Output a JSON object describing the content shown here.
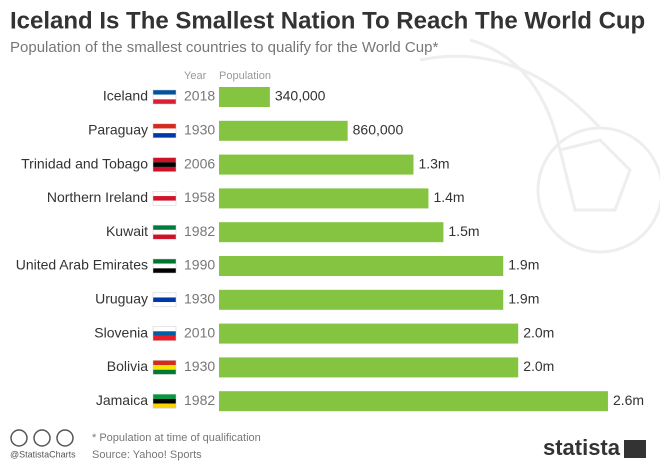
{
  "chart_data": {
    "type": "bar",
    "orientation": "horizontal",
    "title": "Iceland Is The Smallest Nation To Reach The World Cup",
    "subtitle": "Population of the smallest countries to qualify for the World Cup*",
    "column_headers": [
      "Year",
      "Population"
    ],
    "categories": [
      "Iceland",
      "Paraguay",
      "Trinidad and Tobago",
      "Northern Ireland",
      "Kuwait",
      "United Arab Emirates",
      "Uruguay",
      "Slovenia",
      "Bolivia",
      "Jamaica"
    ],
    "years": [
      "2018",
      "1930",
      "2006",
      "1958",
      "1982",
      "1990",
      "1930",
      "2010",
      "1930",
      "1982"
    ],
    "values": [
      340000,
      860000,
      1300000,
      1400000,
      1500000,
      1900000,
      1900000,
      2000000,
      2000000,
      2600000
    ],
    "value_labels": [
      "340,000",
      "860,000",
      "1.3m",
      "1.4m",
      "1.5m",
      "1.9m",
      "1.9m",
      "2.0m",
      "2.0m",
      "2.6m"
    ],
    "color": "#84c441",
    "footnote": "* Population at time of qualification",
    "source": "Source: Yahoo! Sports",
    "handle": "@StatistaCharts",
    "brand": "statista"
  }
}
